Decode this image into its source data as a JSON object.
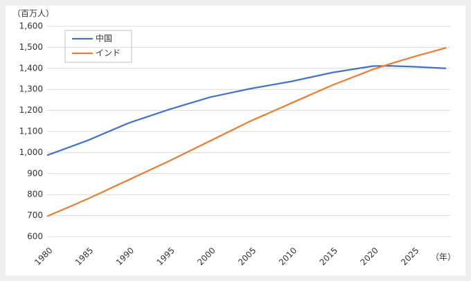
{
  "chart_data": {
    "type": "line",
    "y_unit": "（百万人）",
    "x_unit": "（年）",
    "x": [
      1980,
      1982,
      1985,
      1990,
      1995,
      2000,
      2005,
      2010,
      2015,
      2020,
      2022,
      2025,
      2029
    ],
    "series": [
      {
        "name": "中国",
        "color": "#4472c4",
        "values": [
          987,
          1015,
          1058,
          1140,
          1205,
          1263,
          1304,
          1338,
          1380,
          1411,
          1412,
          1408,
          1400
        ]
      },
      {
        "name": "インド",
        "color": "#ed7d31",
        "values": [
          697,
          730,
          780,
          870,
          960,
          1055,
          1150,
          1235,
          1320,
          1395,
          1420,
          1455,
          1498
        ]
      }
    ],
    "xlim": [
      1980,
      2029.5
    ],
    "xticks": [
      1980,
      1985,
      1990,
      1995,
      2000,
      2005,
      2010,
      2015,
      2020,
      2025
    ],
    "ylim": [
      600,
      1600
    ],
    "yticks": [
      {
        "value": 600,
        "label": "600"
      },
      {
        "value": 700,
        "label": "700"
      },
      {
        "value": 800,
        "label": "800"
      },
      {
        "value": 900,
        "label": "900"
      },
      {
        "value": 1000,
        "label": "1,000"
      },
      {
        "value": 1100,
        "label": "1,100"
      },
      {
        "value": 1200,
        "label": "1,200"
      },
      {
        "value": 1300,
        "label": "1,300"
      },
      {
        "value": 1400,
        "label": "1,400"
      },
      {
        "value": 1500,
        "label": "1,500"
      },
      {
        "value": 1600,
        "label": "1,600"
      }
    ],
    "grid": true,
    "legend": "top-left"
  }
}
